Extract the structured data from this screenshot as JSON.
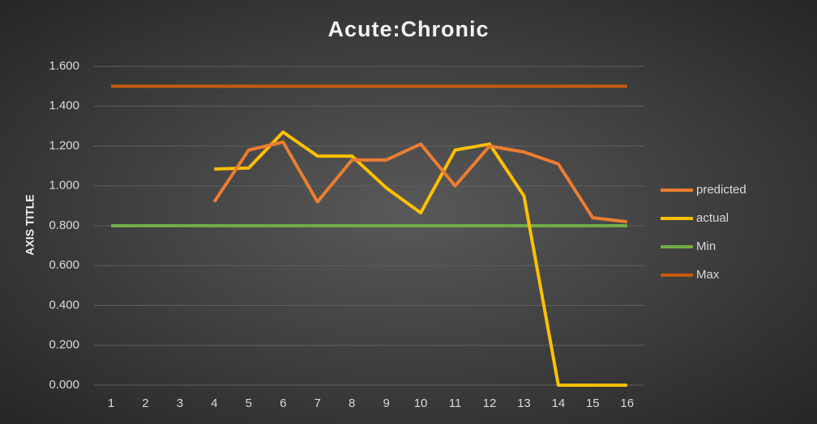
{
  "chart_data": {
    "type": "line",
    "title": "Acute:Chronic",
    "y_label": "AXIS TITLE",
    "categories": [
      "1",
      "2",
      "3",
      "4",
      "5",
      "6",
      "7",
      "8",
      "9",
      "10",
      "11",
      "12",
      "13",
      "14",
      "15",
      "16"
    ],
    "series": [
      {
        "name": "predicted",
        "color": "#ed7d31",
        "values": [
          null,
          null,
          null,
          0.92,
          1.18,
          1.22,
          0.92,
          1.13,
          1.13,
          1.21,
          1.0,
          1.2,
          1.17,
          1.11,
          0.84,
          0.82
        ]
      },
      {
        "name": "actual",
        "color": "#ffc000",
        "values": [
          null,
          null,
          null,
          1.085,
          1.09,
          1.27,
          1.15,
          1.15,
          0.99,
          0.865,
          1.18,
          1.21,
          0.95,
          0,
          0,
          0
        ]
      },
      {
        "name": "Min",
        "color": "#70ad47",
        "values": [
          0.8,
          0.8,
          0.8,
          0.8,
          0.8,
          0.8,
          0.8,
          0.8,
          0.8,
          0.8,
          0.8,
          0.8,
          0.8,
          0.8,
          0.8,
          0.8
        ]
      },
      {
        "name": "Max",
        "color": "#c55a11",
        "values": [
          1.5,
          1.5,
          1.5,
          1.5,
          1.5,
          1.5,
          1.5,
          1.5,
          1.5,
          1.5,
          1.5,
          1.5,
          1.5,
          1.5,
          1.5,
          1.5
        ]
      }
    ],
    "ylim": [
      0,
      1.6
    ],
    "yticks": [
      {
        "value": 0,
        "label": "0.000"
      },
      {
        "value": 0.2,
        "label": "0.200"
      },
      {
        "value": 0.4,
        "label": "0.400"
      },
      {
        "value": 0.6,
        "label": "0.600"
      },
      {
        "value": 0.8,
        "label": "0.800"
      },
      {
        "value": 1.0,
        "label": "1.000"
      },
      {
        "value": 1.2,
        "label": "1.200"
      },
      {
        "value": 1.4,
        "label": "1.400"
      },
      {
        "value": 1.6,
        "label": "1.600"
      }
    ],
    "grid": true,
    "legend": "right"
  }
}
